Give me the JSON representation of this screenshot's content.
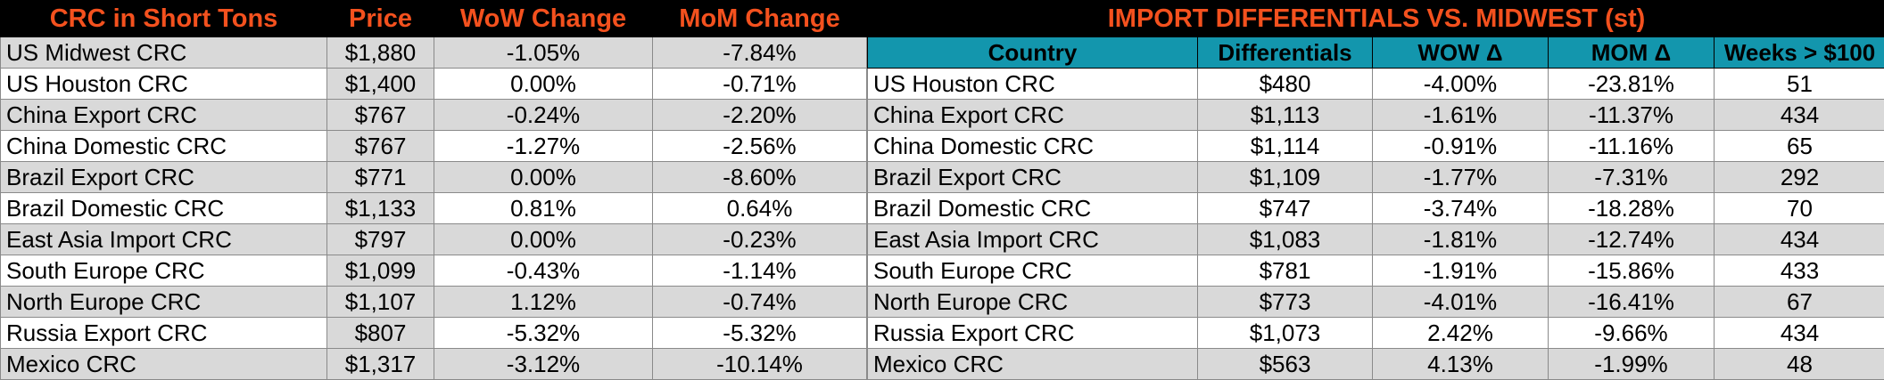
{
  "left": {
    "headers": [
      "CRC in Short Tons",
      "Price",
      "WoW Change",
      "MoM Change"
    ],
    "rows": [
      {
        "name": "US Midwest CRC",
        "price": "$1,880",
        "wow": "-1.05%",
        "mom": "-7.84%"
      },
      {
        "name": "US Houston CRC",
        "price": "$1,400",
        "wow": "0.00%",
        "mom": "-0.71%"
      },
      {
        "name": "China Export CRC",
        "price": "$767",
        "wow": "-0.24%",
        "mom": "-2.20%"
      },
      {
        "name": "China Domestic CRC",
        "price": "$767",
        "wow": "-1.27%",
        "mom": "-2.56%"
      },
      {
        "name": "Brazil Export CRC",
        "price": "$771",
        "wow": "0.00%",
        "mom": "-8.60%"
      },
      {
        "name": "Brazil Domestic CRC",
        "price": "$1,133",
        "wow": "0.81%",
        "mom": "0.64%"
      },
      {
        "name": "East Asia Import CRC",
        "price": "$797",
        "wow": "0.00%",
        "mom": "-0.23%"
      },
      {
        "name": "South Europe CRC",
        "price": "$1,099",
        "wow": "-0.43%",
        "mom": "-1.14%"
      },
      {
        "name": "North Europe CRC",
        "price": "$1,107",
        "wow": "1.12%",
        "mom": "-0.74%"
      },
      {
        "name": "Russia Export CRC",
        "price": "$807",
        "wow": "-5.32%",
        "mom": "-5.32%"
      },
      {
        "name": "Mexico CRC",
        "price": "$1,317",
        "wow": "-3.12%",
        "mom": "-10.14%"
      }
    ]
  },
  "right": {
    "title": "IMPORT DIFFERENTIALS VS. MIDWEST (st)",
    "headers": [
      "Country",
      "Differentials",
      "WOW Δ",
      "MOM Δ",
      "Weeks > $100"
    ],
    "rows": [
      {
        "name": "US Houston CRC",
        "diff": "$480",
        "wow": "-4.00%",
        "mom": "-23.81%",
        "weeks": "51"
      },
      {
        "name": "China Export CRC",
        "diff": "$1,113",
        "wow": "-1.61%",
        "mom": "-11.37%",
        "weeks": "434"
      },
      {
        "name": "China Domestic CRC",
        "diff": "$1,114",
        "wow": "-0.91%",
        "mom": "-11.16%",
        "weeks": "65"
      },
      {
        "name": "Brazil Export CRC",
        "diff": "$1,109",
        "wow": "-1.77%",
        "mom": "-7.31%",
        "weeks": "292"
      },
      {
        "name": "Brazil Domestic CRC",
        "diff": "$747",
        "wow": "-3.74%",
        "mom": "-18.28%",
        "weeks": "70"
      },
      {
        "name": "East Asia Import CRC",
        "diff": "$1,083",
        "wow": "-1.81%",
        "mom": "-12.74%",
        "weeks": "434"
      },
      {
        "name": "South Europe CRC",
        "diff": "$781",
        "wow": "-1.91%",
        "mom": "-15.86%",
        "weeks": "433"
      },
      {
        "name": "North Europe CRC",
        "diff": "$773",
        "wow": "-4.01%",
        "mom": "-16.41%",
        "weeks": "67"
      },
      {
        "name": "Russia Export CRC",
        "diff": "$1,073",
        "wow": "2.42%",
        "mom": "-9.66%",
        "weeks": "434"
      },
      {
        "name": "Mexico CRC",
        "diff": "$563",
        "wow": "4.13%",
        "mom": "-1.99%",
        "weeks": "48"
      }
    ]
  },
  "colors": {
    "header_bg": "#000000",
    "header_text": "#f4511e",
    "subheader_bg": "#1396ad",
    "row_shade": "#d9d9d9"
  }
}
